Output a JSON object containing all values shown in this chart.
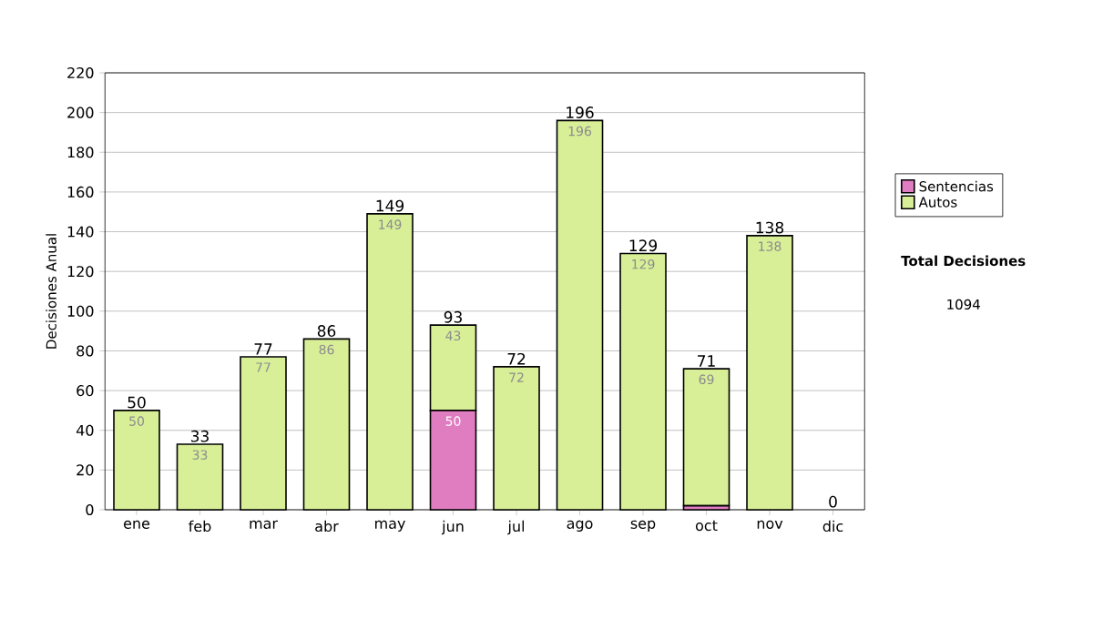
{
  "chart_data": {
    "type": "bar",
    "stacked": true,
    "ylabel": "Decisiones Anual",
    "categories": [
      "ene",
      "feb",
      "mar",
      "abr",
      "may",
      "jun",
      "jul",
      "ago",
      "sep",
      "oct",
      "nov",
      "dic"
    ],
    "series": [
      {
        "name": "Sentencias",
        "color": "#e07cc0",
        "values": [
          0,
          0,
          0,
          0,
          0,
          50,
          0,
          0,
          0,
          2,
          0,
          0
        ],
        "value_labels": [
          null,
          null,
          null,
          null,
          null,
          "50",
          null,
          null,
          null,
          null,
          null,
          null
        ]
      },
      {
        "name": "Autos",
        "color": "#d8ef98",
        "values": [
          50,
          33,
          77,
          86,
          149,
          43,
          72,
          196,
          129,
          69,
          138,
          0
        ],
        "value_labels": [
          "50",
          "33",
          "77",
          "86",
          "149",
          "43",
          "72",
          "196",
          "129",
          "69",
          "138",
          null
        ]
      }
    ],
    "totals": [
      "50",
      "33",
      "77",
      "86",
      "149",
      "93",
      "72",
      "196",
      "129",
      "71",
      "138",
      "0"
    ],
    "ylim": [
      0,
      220
    ],
    "yticks": [
      0,
      20,
      40,
      60,
      80,
      100,
      120,
      140,
      160,
      180,
      200,
      220
    ],
    "grid": "y",
    "legend": "right",
    "annotations": [
      "Total Decisiones",
      "1094"
    ]
  }
}
